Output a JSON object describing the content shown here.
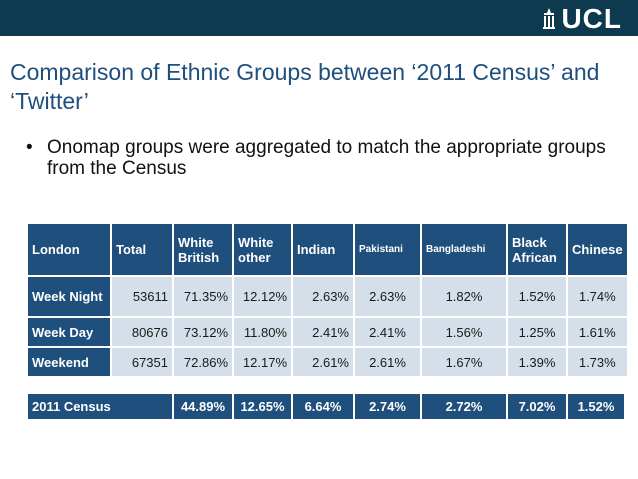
{
  "header": {
    "logo_text": "UCL",
    "bar_color": "#0d3a4e"
  },
  "slide": {
    "title": "Comparison of Ethnic Groups between ‘2011 Census’ and ‘Twitter’",
    "bullet": "Onomap groups were aggregated to match the appropriate groups from the Census",
    "bullet_symbol": "•"
  },
  "table": {
    "header": [
      "London",
      "Total",
      "White British",
      "White other",
      "Indian",
      "Pakistani",
      "Bangladeshi",
      "Black African",
      "Chinese"
    ],
    "rows": [
      {
        "label": "Week Night",
        "values": [
          "53611",
          "71.35%",
          "12.12%",
          "2.63%",
          "2.63%",
          "1.82%",
          "1.52%",
          "1.74%"
        ]
      },
      {
        "label": "Week Day",
        "values": [
          "80676",
          "73.12%",
          "11.80%",
          "2.41%",
          "2.41%",
          "1.56%",
          "1.25%",
          "1.61%"
        ]
      },
      {
        "label": "Weekend",
        "values": [
          "67351",
          "72.86%",
          "12.17%",
          "2.61%",
          "2.61%",
          "1.67%",
          "1.39%",
          "1.73%"
        ]
      }
    ],
    "census": {
      "label": "2011 Census",
      "values": [
        "44.89%",
        "12.65%",
        "6.64%",
        "2.74%",
        "2.72%",
        "7.02%",
        "1.52%"
      ]
    }
  },
  "colors": {
    "header_fill": "#1f4f7c",
    "cell_fill": "#d5dfe9",
    "title_color": "#1f4f7c"
  }
}
